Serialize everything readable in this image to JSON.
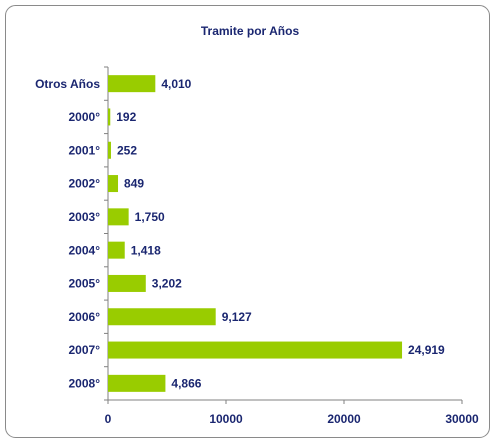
{
  "chart_data": {
    "type": "bar",
    "orientation": "horizontal",
    "title": "Tramite por Años",
    "categories": [
      "Otros Años",
      "2000°",
      "2001°",
      "2002°",
      "2003°",
      "2004°",
      "2005°",
      "2006°",
      "2007°",
      "2008°"
    ],
    "values": [
      4010,
      192,
      252,
      849,
      1750,
      1418,
      3202,
      9127,
      24919,
      4866
    ],
    "value_labels": [
      "4,010",
      "192",
      "252",
      "849",
      "1,750",
      "1,418",
      "3,202",
      "9,127",
      "24,919",
      "4,866"
    ],
    "color": "#99cc00",
    "xlim": [
      0,
      30000
    ],
    "xticks": [
      0,
      10000,
      20000,
      30000
    ],
    "grid": false
  }
}
